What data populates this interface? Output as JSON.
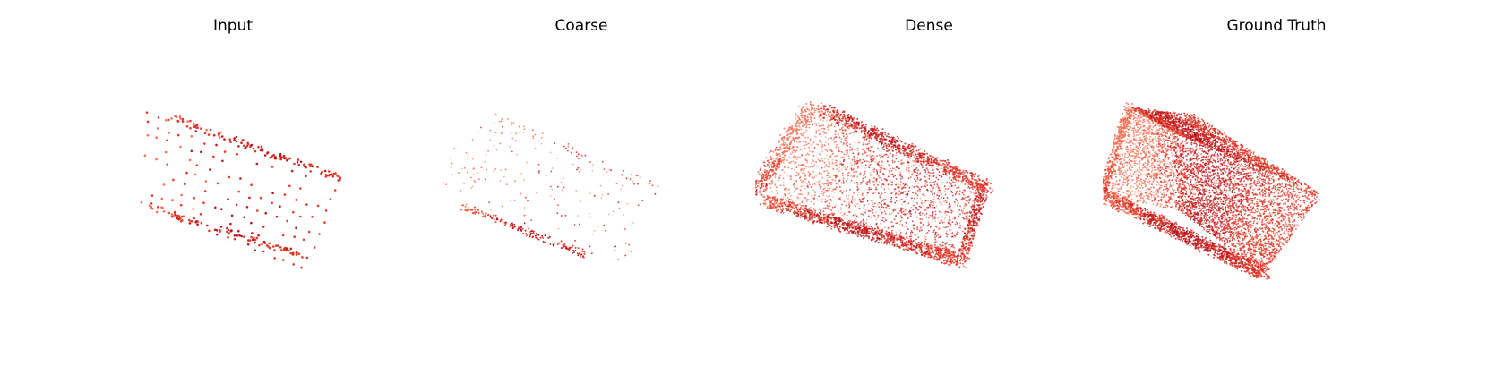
{
  "panels": [
    {
      "title": "Input"
    },
    {
      "title": "Coarse"
    },
    {
      "title": "Dense"
    },
    {
      "title": "Ground Truth"
    }
  ],
  "colors": {
    "light": "#f4694d",
    "mid": "#e0301f",
    "dark": "#b5111a",
    "pale": "#f8a08a"
  }
}
